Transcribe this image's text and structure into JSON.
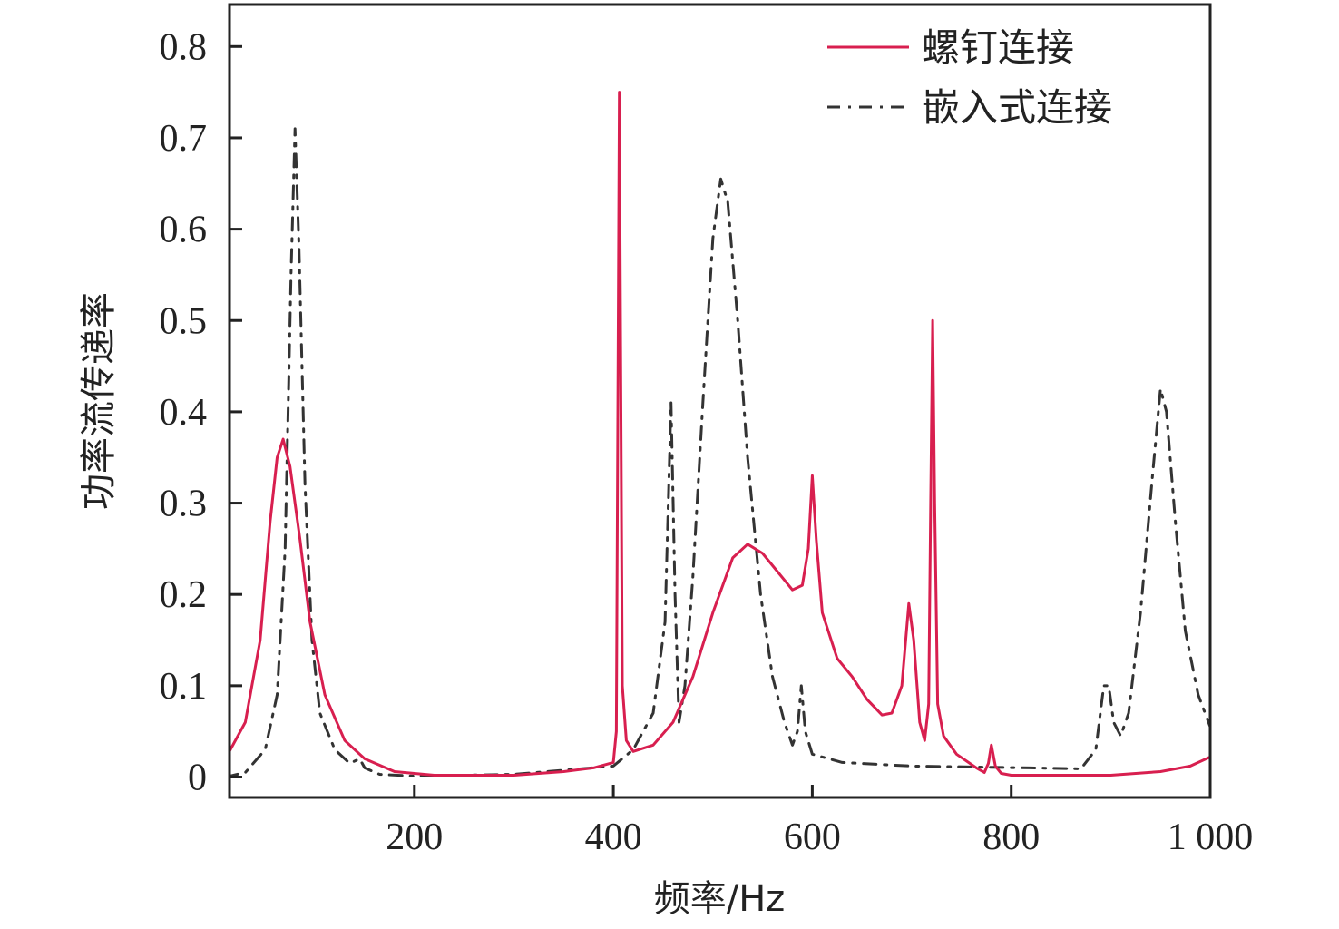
{
  "chart_data": {
    "type": "line",
    "title": "",
    "xlabel": "频率/Hz",
    "ylabel": "功率流传递率",
    "xlim": [
      10,
      1000
    ],
    "ylim": [
      0,
      0.85
    ],
    "x_ticks": [
      200,
      400,
      600,
      800,
      1000
    ],
    "x_tick_labels": [
      "200",
      "400",
      "600",
      "800",
      "1 000"
    ],
    "y_ticks": [
      0,
      0.1,
      0.2,
      0.3,
      0.4,
      0.5,
      0.6,
      0.7,
      0.8
    ],
    "y_tick_labels": [
      "0",
      "0.1",
      "0.2",
      "0.3",
      "0.4",
      "0.5",
      "0.6",
      "0.7",
      "0.8"
    ],
    "grid": false,
    "legend_position": "top-right",
    "series": [
      {
        "name": "螺钉连接",
        "color": "#d81f4f",
        "dash": "solid",
        "points": [
          [
            10,
            0.02
          ],
          [
            30,
            0.06
          ],
          [
            45,
            0.15
          ],
          [
            55,
            0.28
          ],
          [
            62,
            0.35
          ],
          [
            68,
            0.37
          ],
          [
            75,
            0.34
          ],
          [
            85,
            0.26
          ],
          [
            95,
            0.17
          ],
          [
            110,
            0.09
          ],
          [
            130,
            0.04
          ],
          [
            150,
            0.02
          ],
          [
            180,
            0.006
          ],
          [
            220,
            0.002
          ],
          [
            300,
            0.002
          ],
          [
            350,
            0.006
          ],
          [
            380,
            0.01
          ],
          [
            400,
            0.016
          ],
          [
            403,
            0.05
          ],
          [
            406,
            0.75
          ],
          [
            409,
            0.1
          ],
          [
            413,
            0.04
          ],
          [
            420,
            0.028
          ],
          [
            440,
            0.035
          ],
          [
            460,
            0.06
          ],
          [
            480,
            0.11
          ],
          [
            500,
            0.18
          ],
          [
            520,
            0.24
          ],
          [
            535,
            0.255
          ],
          [
            550,
            0.245
          ],
          [
            565,
            0.225
          ],
          [
            580,
            0.205
          ],
          [
            590,
            0.21
          ],
          [
            596,
            0.25
          ],
          [
            600,
            0.33
          ],
          [
            604,
            0.26
          ],
          [
            610,
            0.18
          ],
          [
            625,
            0.13
          ],
          [
            640,
            0.11
          ],
          [
            655,
            0.085
          ],
          [
            670,
            0.068
          ],
          [
            680,
            0.07
          ],
          [
            690,
            0.1
          ],
          [
            697,
            0.19
          ],
          [
            702,
            0.15
          ],
          [
            708,
            0.06
          ],
          [
            713,
            0.04
          ],
          [
            717,
            0.08
          ],
          [
            719,
            0.3
          ],
          [
            721,
            0.5
          ],
          [
            723,
            0.3
          ],
          [
            726,
            0.08
          ],
          [
            732,
            0.045
          ],
          [
            745,
            0.025
          ],
          [
            765,
            0.01
          ],
          [
            773,
            0.005
          ],
          [
            777,
            0.015
          ],
          [
            780,
            0.035
          ],
          [
            784,
            0.012
          ],
          [
            790,
            0.004
          ],
          [
            800,
            0.002
          ],
          [
            900,
            0.002
          ],
          [
            950,
            0.006
          ],
          [
            980,
            0.012
          ],
          [
            1000,
            0.022
          ]
        ]
      },
      {
        "name": "嵌入式连接",
        "color": "#333333",
        "dash": "dash-dot",
        "points": [
          [
            10,
            0.0
          ],
          [
            30,
            0.005
          ],
          [
            50,
            0.03
          ],
          [
            62,
            0.09
          ],
          [
            70,
            0.25
          ],
          [
            76,
            0.55
          ],
          [
            80,
            0.71
          ],
          [
            84,
            0.58
          ],
          [
            90,
            0.32
          ],
          [
            97,
            0.15
          ],
          [
            105,
            0.07
          ],
          [
            120,
            0.03
          ],
          [
            135,
            0.015
          ],
          [
            145,
            0.02
          ],
          [
            150,
            0.01
          ],
          [
            165,
            0.003
          ],
          [
            200,
            0.001
          ],
          [
            300,
            0.003
          ],
          [
            400,
            0.012
          ],
          [
            420,
            0.03
          ],
          [
            440,
            0.07
          ],
          [
            452,
            0.17
          ],
          [
            458,
            0.41
          ],
          [
            462,
            0.2
          ],
          [
            466,
            0.06
          ],
          [
            472,
            0.1
          ],
          [
            480,
            0.22
          ],
          [
            490,
            0.41
          ],
          [
            500,
            0.59
          ],
          [
            508,
            0.655
          ],
          [
            515,
            0.63
          ],
          [
            525,
            0.5
          ],
          [
            535,
            0.35
          ],
          [
            548,
            0.2
          ],
          [
            560,
            0.11
          ],
          [
            572,
            0.06
          ],
          [
            580,
            0.035
          ],
          [
            585,
            0.05
          ],
          [
            589,
            0.1
          ],
          [
            593,
            0.05
          ],
          [
            600,
            0.025
          ],
          [
            630,
            0.016
          ],
          [
            700,
            0.012
          ],
          [
            760,
            0.011
          ],
          [
            820,
            0.01
          ],
          [
            870,
            0.009
          ],
          [
            885,
            0.03
          ],
          [
            893,
            0.1
          ],
          [
            898,
            0.1
          ],
          [
            903,
            0.06
          ],
          [
            910,
            0.045
          ],
          [
            918,
            0.07
          ],
          [
            930,
            0.18
          ],
          [
            942,
            0.33
          ],
          [
            950,
            0.425
          ],
          [
            956,
            0.4
          ],
          [
            965,
            0.28
          ],
          [
            975,
            0.16
          ],
          [
            988,
            0.09
          ],
          [
            1000,
            0.055
          ]
        ]
      }
    ]
  }
}
